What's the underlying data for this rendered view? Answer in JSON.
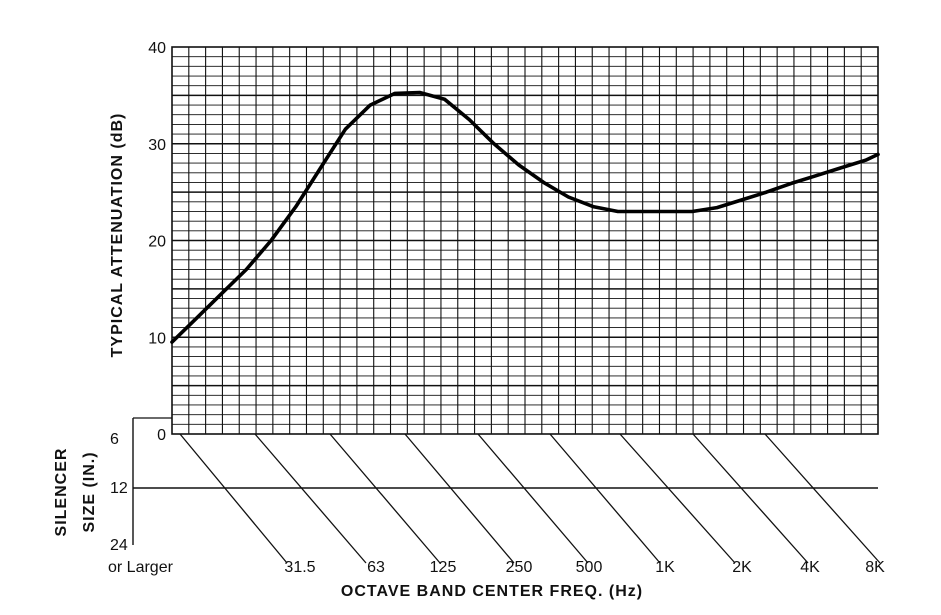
{
  "chart_data": {
    "type": "line",
    "ylabel": "TYPICAL ATTENUATION (dB)",
    "xlabel": "OCTAVE BAND CENTER FREQ. (Hz)",
    "ylim": [
      0,
      40
    ],
    "yticks": [
      "0",
      "10",
      "20",
      "30",
      "40"
    ],
    "grid": true,
    "x_ticks": [
      "31.5",
      "63",
      "125",
      "250",
      "500",
      "1K",
      "2K",
      "4K",
      "8K"
    ],
    "series": [
      {
        "values": [
          {
            "x": 0.0,
            "y": 9.5
          },
          {
            "x": 0.3,
            "y": 12.0
          },
          {
            "x": 0.6,
            "y": 14.5
          },
          {
            "x": 0.9,
            "y": 17.0
          },
          {
            "x": 1.2,
            "y": 20.0
          },
          {
            "x": 1.5,
            "y": 23.5
          },
          {
            "x": 1.8,
            "y": 27.5
          },
          {
            "x": 2.1,
            "y": 31.5
          },
          {
            "x": 2.4,
            "y": 34.0
          },
          {
            "x": 2.7,
            "y": 35.2
          },
          {
            "x": 3.0,
            "y": 35.3
          },
          {
            "x": 3.3,
            "y": 34.6
          },
          {
            "x": 3.6,
            "y": 32.5
          },
          {
            "x": 3.9,
            "y": 30.0
          },
          {
            "x": 4.2,
            "y": 27.8
          },
          {
            "x": 4.5,
            "y": 26.0
          },
          {
            "x": 4.8,
            "y": 24.5
          },
          {
            "x": 5.1,
            "y": 23.5
          },
          {
            "x": 5.4,
            "y": 23.0
          },
          {
            "x": 5.7,
            "y": 23.0
          },
          {
            "x": 6.0,
            "y": 23.0
          },
          {
            "x": 6.3,
            "y": 23.0
          },
          {
            "x": 6.6,
            "y": 23.4
          },
          {
            "x": 6.9,
            "y": 24.2
          },
          {
            "x": 7.2,
            "y": 25.0
          },
          {
            "x": 7.5,
            "y": 25.9
          },
          {
            "x": 7.8,
            "y": 26.7
          },
          {
            "x": 8.1,
            "y": 27.5
          },
          {
            "x": 8.4,
            "y": 28.3
          },
          {
            "x": 8.55,
            "y": 28.9
          }
        ]
      }
    ],
    "silencer_size": {
      "label_line1": "SILENCER",
      "label_line2": "SIZE (IN.)",
      "levels": [
        "6",
        "12",
        "24"
      ],
      "larger_label": "or Larger"
    }
  }
}
